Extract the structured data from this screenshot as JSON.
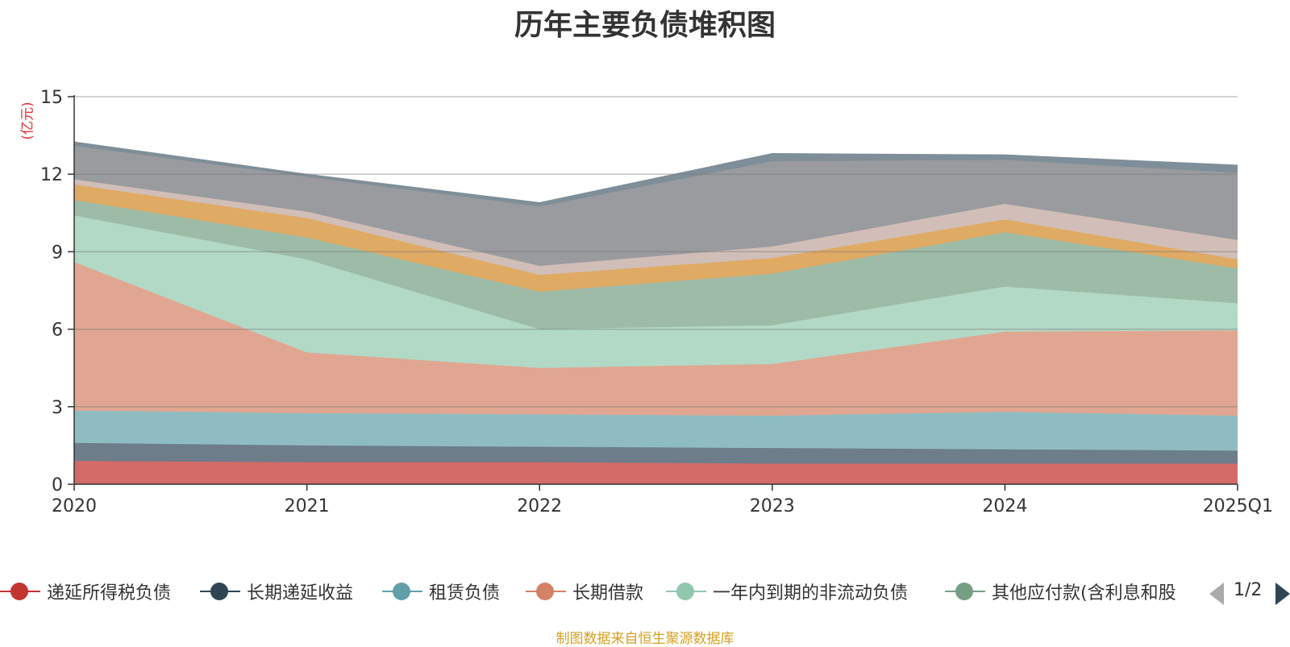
{
  "title": "历年主要负债堆积图",
  "unit_label": "(亿元)",
  "source_note": "制图数据来自恒生聚源数据库",
  "legend_page": "1/2",
  "chart_data": {
    "type": "area",
    "stacked": true,
    "title": "历年主要负债堆积图",
    "ylabel": "(亿元)",
    "ylim": [
      0,
      15
    ],
    "yticks": [
      0,
      3,
      6,
      9,
      12,
      15
    ],
    "x": [
      "2020",
      "2021",
      "2022",
      "2023",
      "2024",
      "2025Q1"
    ],
    "grid": true,
    "legend_position": "bottom",
    "series": [
      {
        "name": "递延所得税负债",
        "color": "#c23531",
        "fill": "#d46b69",
        "values": [
          0.9,
          0.85,
          0.85,
          0.8,
          0.8,
          0.8
        ]
      },
      {
        "name": "长期递延收益",
        "color": "#2f4554",
        "fill": "#6d7d89",
        "values": [
          0.7,
          0.65,
          0.6,
          0.6,
          0.55,
          0.5
        ]
      },
      {
        "name": "租赁负债",
        "color": "#61a0a8",
        "fill": "#8fbcc2",
        "values": [
          1.25,
          1.25,
          1.25,
          1.25,
          1.45,
          1.35
        ]
      },
      {
        "name": "长期借款",
        "color": "#d48265",
        "fill": "#e0a691",
        "values": [
          5.75,
          2.35,
          1.8,
          2.0,
          3.1,
          3.3
        ]
      },
      {
        "name": "一年内到期的非流动负债",
        "color": "#91c7ae",
        "fill": "#b2d9c6",
        "values": [
          1.8,
          3.6,
          1.5,
          1.5,
          1.75,
          1.05
        ]
      },
      {
        "name": "其他应付款(含利息和股",
        "color": "#749f83",
        "fill": "#9dbba7",
        "values": [
          0.6,
          0.85,
          1.45,
          2.0,
          2.1,
          1.35
        ]
      },
      {
        "name": "",
        "color": "#ca8622",
        "fill": "#dfaa64",
        "values": [
          0.6,
          0.75,
          0.65,
          0.6,
          0.5,
          0.35
        ]
      },
      {
        "name": "",
        "color": "#bda29a",
        "fill": "#d1beb8",
        "values": [
          0.2,
          0.25,
          0.35,
          0.45,
          0.6,
          0.75
        ]
      },
      {
        "name": "",
        "color": "#6e7074",
        "fill": "#9a9b9f",
        "values": [
          1.3,
          1.35,
          2.3,
          3.3,
          1.7,
          2.6
        ]
      },
      {
        "name": "",
        "color": "#546570",
        "fill": "#7f8e98",
        "values": [
          0.15,
          0.1,
          0.15,
          0.3,
          0.2,
          0.3
        ]
      }
    ]
  }
}
